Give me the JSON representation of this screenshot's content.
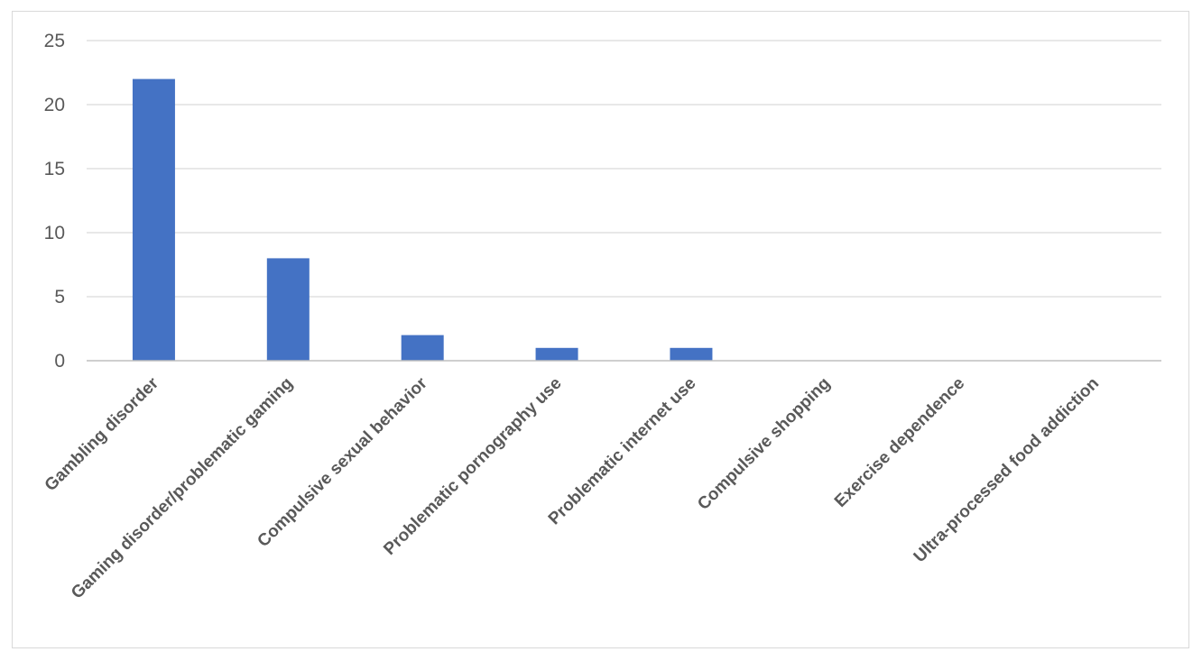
{
  "chart_data": {
    "type": "bar",
    "title": "",
    "xlabel": "",
    "ylabel": "",
    "categories": [
      "Gambling disorder",
      "Gaming disorder/problematic gaming",
      "Compulsive sexual behavior",
      "Problematic pornography use",
      "Problematic internet use",
      "Compulsive shopping",
      "Exercise dependence",
      "Ultra-processed food addiction"
    ],
    "values": [
      22,
      8,
      2,
      1,
      1,
      0,
      0,
      0
    ],
    "ylim": [
      0,
      25
    ],
    "yticks": [
      "0",
      "5",
      "10",
      "15",
      "20",
      "25"
    ],
    "grid": true,
    "legend": "none",
    "bar_color": "#4472c4",
    "grid_color": "#d9d9d9",
    "axis_color": "#bfbfbf",
    "label_color": "#595959"
  }
}
